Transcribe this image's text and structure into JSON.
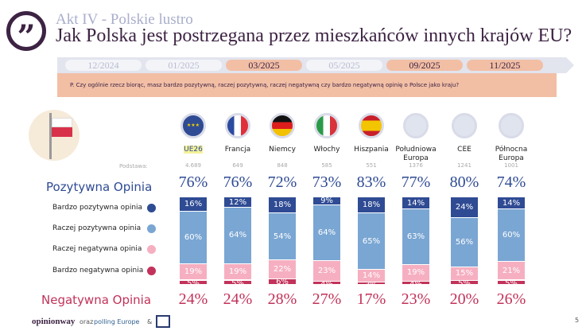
{
  "header": {
    "subtitle": "Akt IV - Polskie lustro",
    "title": "Jak Polska jest postrzegana przez mieszkańców innych krajów EU?"
  },
  "timeline": [
    {
      "label": "12/2024",
      "active": false
    },
    {
      "label": "01/2025",
      "active": false
    },
    {
      "label": "03/2025",
      "active": true
    },
    {
      "label": "05/2025",
      "active": false
    },
    {
      "label": "09/2025",
      "active": true
    },
    {
      "label": "11/2025",
      "active": true
    }
  ],
  "question": "P. Czy ogólnie rzecz biorąc, masz bardzo pozytywną, raczej pozytywną, raczej negatywną czy bardzo negatywną opinię o Polsce jako kraju?",
  "base_label": "Podstawa:",
  "positive_label": "Pozytywna Opinia",
  "negative_label": "Negatywna Opinia",
  "colors": {
    "very_positive": "#2f4b94",
    "rather_positive": "#7aa6d3",
    "rather_negative": "#f6afc1",
    "very_negative": "#c2325a"
  },
  "chart_data": {
    "type": "bar",
    "stacked": true,
    "categories": [
      "UE26",
      "Francja",
      "Niemcy",
      "Włochy",
      "Hiszpania",
      "Południowa Europa",
      "CEE",
      "Północna Europa"
    ],
    "bases": [
      "4.689",
      "649",
      "848",
      "585",
      "551",
      "1376",
      "1241",
      "1001"
    ],
    "positive_totals": [
      "76%",
      "76%",
      "72%",
      "73%",
      "83%",
      "77%",
      "80%",
      "74%"
    ],
    "negative_totals": [
      "24%",
      "24%",
      "28%",
      "27%",
      "17%",
      "23%",
      "20%",
      "26%"
    ],
    "series": [
      {
        "name": "Bardzo pozytywna opinia",
        "values": [
          16,
          12,
          18,
          9,
          18,
          14,
          24,
          14
        ]
      },
      {
        "name": "Raczej pozytywna opinia",
        "values": [
          60,
          64,
          54,
          64,
          65,
          63,
          56,
          60
        ]
      },
      {
        "name": "Raczej negatywna opinia",
        "values": [
          19,
          19,
          22,
          23,
          14,
          19,
          15,
          21
        ]
      },
      {
        "name": "Bardzo negatywna opinia",
        "values": [
          5,
          5,
          6,
          4,
          3,
          4,
          5,
          5
        ]
      }
    ]
  },
  "footer": {
    "brand": "opinionway",
    "connector": "oraz",
    "partner": "polling Europe",
    "amp": "&",
    "page": "5"
  }
}
